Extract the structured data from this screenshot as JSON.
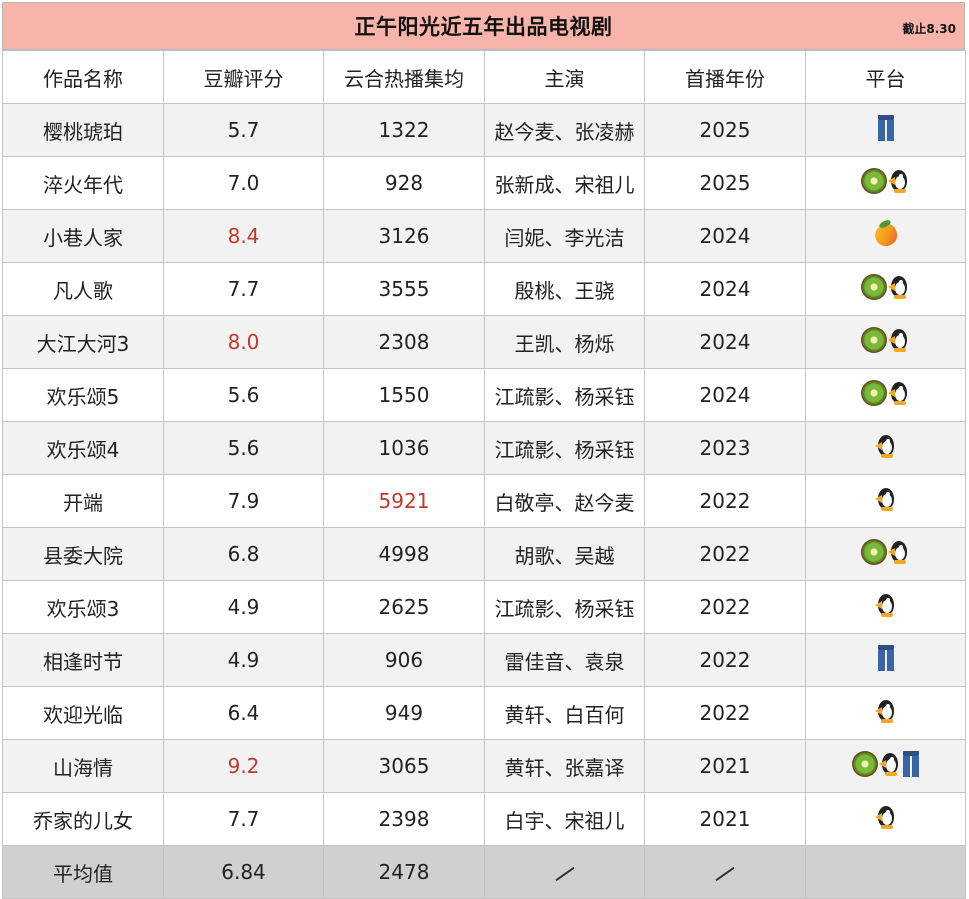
{
  "title": "正午阳光近五年出品电视剧",
  "cutoff": "截止8.30",
  "headers": [
    "作品名称",
    "豆瓣评分",
    "云合热播集均",
    "主演",
    "首播年份",
    "平台"
  ],
  "rows": [
    {
      "name": "樱桃琥珀",
      "score": "5.7",
      "avg": "1322",
      "cast": "赵今麦、张凌赫",
      "year": "2025",
      "platforms": [
        "jeans"
      ]
    },
    {
      "name": "淬火年代",
      "score": "7.0",
      "avg": "928",
      "cast": "张新成、宋祖儿",
      "year": "2025",
      "platforms": [
        "kiwi",
        "penguin"
      ]
    },
    {
      "name": "小巷人家",
      "score": "8.4",
      "avg": "3126",
      "cast": "闫妮、李光洁",
      "year": "2024",
      "platforms": [
        "mango"
      ]
    },
    {
      "name": "凡人歌",
      "score": "7.7",
      "avg": "3555",
      "cast": "殷桃、王骁",
      "year": "2024",
      "platforms": [
        "kiwi",
        "penguin"
      ]
    },
    {
      "name": "大江大河3",
      "score": "8.0",
      "avg": "2308",
      "cast": "王凯、杨烁",
      "year": "2024",
      "platforms": [
        "kiwi",
        "penguin"
      ]
    },
    {
      "name": "欢乐颂5",
      "score": "5.6",
      "avg": "1550",
      "cast": "江疏影、杨采钰",
      "year": "2024",
      "platforms": [
        "kiwi",
        "penguin"
      ]
    },
    {
      "name": "欢乐颂4",
      "score": "5.6",
      "avg": "1036",
      "cast": "江疏影、杨采钰",
      "year": "2023",
      "platforms": [
        "penguin"
      ]
    },
    {
      "name": "开端",
      "score": "7.9",
      "avg": "5921",
      "cast": "白敬亭、赵今麦",
      "year": "2022",
      "platforms": [
        "penguin"
      ]
    },
    {
      "name": "县委大院",
      "score": "6.8",
      "avg": "4998",
      "cast": "胡歌、吴越",
      "year": "2022",
      "platforms": [
        "kiwi",
        "penguin"
      ]
    },
    {
      "name": "欢乐颂3",
      "score": "4.9",
      "avg": "2625",
      "cast": "江疏影、杨采钰",
      "year": "2022",
      "platforms": [
        "penguin"
      ]
    },
    {
      "name": "相逢时节",
      "score": "4.9",
      "avg": "906",
      "cast": "雷佳音、袁泉",
      "year": "2022",
      "platforms": [
        "jeans"
      ]
    },
    {
      "name": "欢迎光临",
      "score": "6.4",
      "avg": "949",
      "cast": "黄轩、白百何",
      "year": "2022",
      "platforms": [
        "penguin"
      ]
    },
    {
      "name": "山海情",
      "score": "9.2",
      "avg": "3065",
      "cast": "黄轩、张嘉译",
      "year": "2021",
      "platforms": [
        "kiwi",
        "penguin",
        "jeans"
      ]
    },
    {
      "name": "乔家的儿女",
      "score": "7.7",
      "avg": "2398",
      "cast": "白宇、宋祖儿",
      "year": "2021",
      "platforms": [
        "penguin"
      ]
    }
  ],
  "average": {
    "label": "平均值",
    "score": "6.84",
    "avg": "2478"
  },
  "highlight_color": "#c0392b",
  "highlighted_scores": [
    "8.4",
    "8.0",
    "9.2"
  ],
  "highlighted_avgs": [
    "5921"
  ]
}
